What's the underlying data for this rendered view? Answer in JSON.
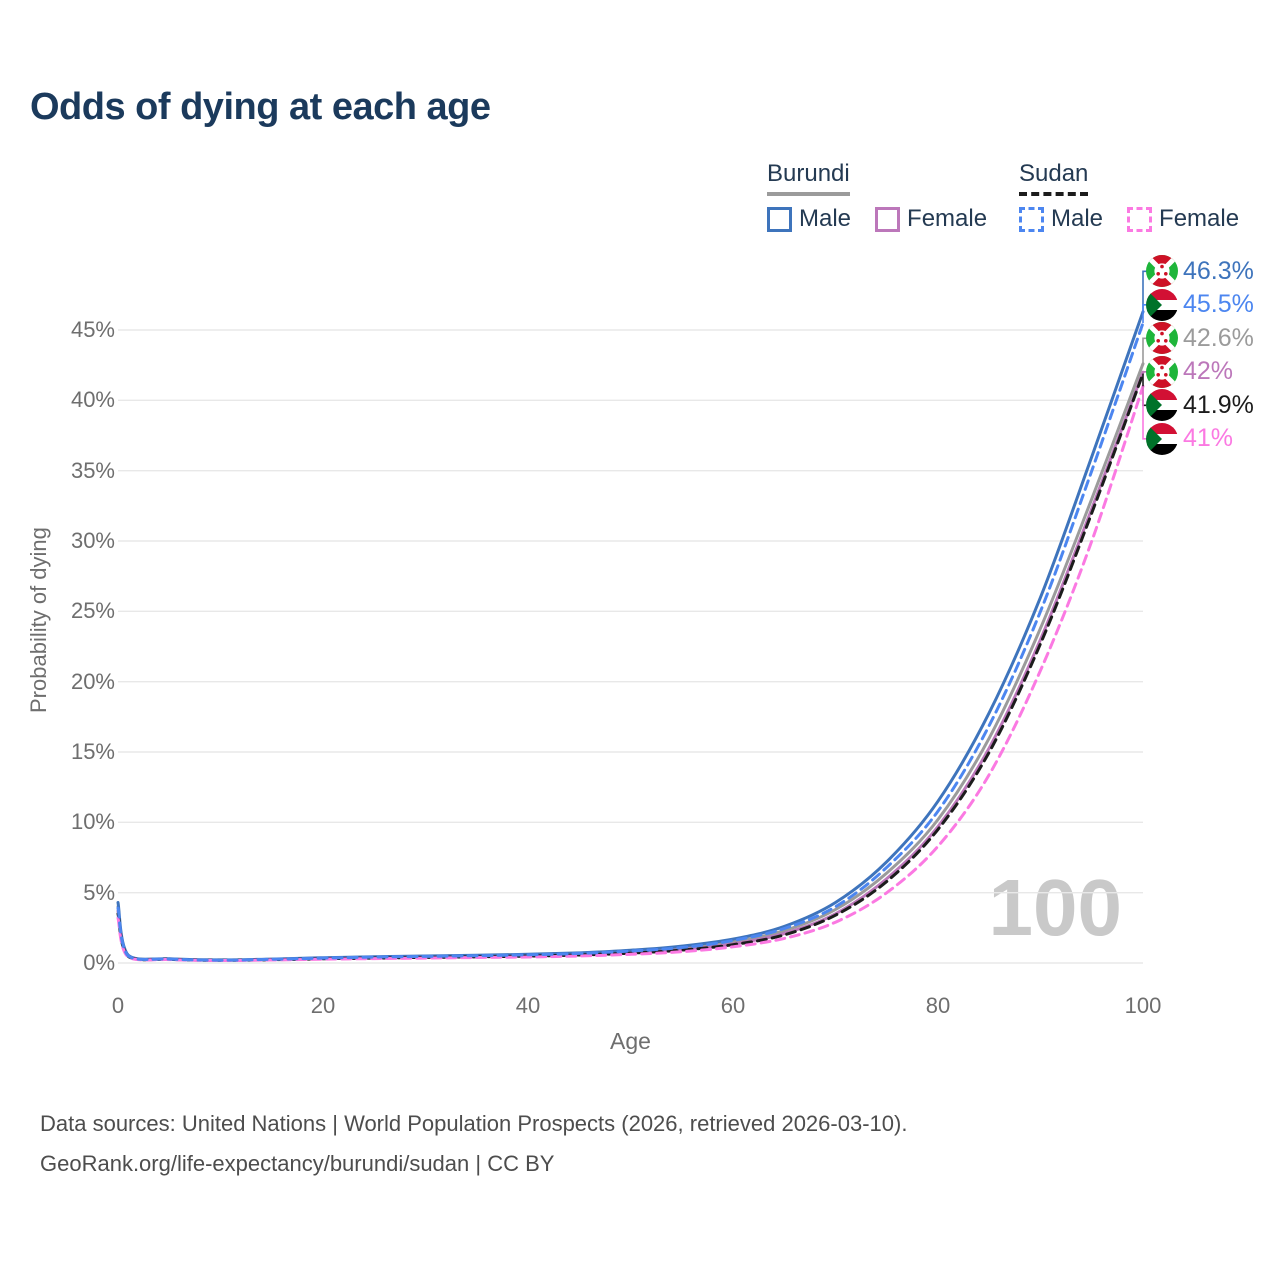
{
  "title": "Odds of dying at each age",
  "legend": {
    "groups": [
      {
        "country": "Burundi",
        "line_color": "#9b9b9b",
        "dashed": false,
        "items": [
          {
            "label": "Male",
            "color": "#3e74bc",
            "dashed": false
          },
          {
            "label": "Female",
            "color": "#bc77ba",
            "dashed": false
          }
        ]
      },
      {
        "country": "Sudan",
        "line_color": "#1c1c1c",
        "dashed": true,
        "items": [
          {
            "label": "Male",
            "color": "#4c86f0",
            "dashed": true
          },
          {
            "label": "Female",
            "color": "#fb79e2",
            "dashed": true
          }
        ]
      }
    ]
  },
  "colors": {
    "title": "#1b3a5c",
    "legend_text": "#243a52",
    "axis_text": "#6e6e6e",
    "grid": "#e8e8e8",
    "watermark": "#c9c9c9",
    "footer": "#4d4d4d"
  },
  "chart_data": {
    "type": "line",
    "title": "Odds of dying at each age",
    "xlabel": "Age",
    "ylabel": "Probability of dying",
    "xlim": [
      0,
      100
    ],
    "ylim": [
      0,
      48
    ],
    "xticks": [
      0,
      20,
      40,
      60,
      80,
      100
    ],
    "yticks": [
      0,
      5,
      10,
      15,
      20,
      25,
      30,
      35,
      40,
      45
    ],
    "ytick_suffix": "%",
    "grid": "horizontal",
    "legend_position": "top-right",
    "age_marker": "100",
    "ages": [
      0,
      1,
      5,
      10,
      15,
      20,
      25,
      30,
      35,
      40,
      45,
      50,
      55,
      60,
      65,
      70,
      75,
      80,
      85,
      90,
      95,
      100
    ],
    "series": [
      {
        "id": "burundi_male",
        "name": "Burundi Male",
        "flag": "burundi",
        "color": "#3e74bc",
        "dashed": false,
        "end_label": "46.3%",
        "values": [
          4.3,
          0.55,
          0.3,
          0.22,
          0.28,
          0.38,
          0.45,
          0.5,
          0.55,
          0.62,
          0.72,
          0.9,
          1.2,
          1.7,
          2.6,
          4.3,
          7.2,
          11.5,
          17.8,
          26.0,
          36.0,
          46.3
        ]
      },
      {
        "id": "sudan_male",
        "name": "Sudan Male",
        "flag": "sudan",
        "color": "#4c86f0",
        "dashed": true,
        "end_label": "45.5%",
        "values": [
          3.9,
          0.5,
          0.28,
          0.2,
          0.26,
          0.35,
          0.42,
          0.47,
          0.52,
          0.58,
          0.68,
          0.85,
          1.1,
          1.6,
          2.45,
          4.0,
          6.8,
          10.8,
          16.9,
          25.0,
          35.0,
          45.5
        ]
      },
      {
        "id": "burundi_both",
        "name": "Burundi",
        "flag": "burundi",
        "color": "#9b9b9b",
        "dashed": false,
        "end_label": "42.6%",
        "values": [
          4.0,
          0.52,
          0.29,
          0.21,
          0.26,
          0.35,
          0.41,
          0.46,
          0.5,
          0.56,
          0.65,
          0.8,
          1.05,
          1.5,
          2.3,
          3.8,
          6.4,
          10.2,
          16.0,
          23.8,
          33.0,
          42.6
        ]
      },
      {
        "id": "burundi_female",
        "name": "Burundi Female",
        "flag": "burundi",
        "color": "#bc77ba",
        "dashed": false,
        "end_label": "42%",
        "values": [
          3.7,
          0.48,
          0.27,
          0.2,
          0.24,
          0.31,
          0.36,
          0.41,
          0.45,
          0.5,
          0.58,
          0.72,
          0.95,
          1.35,
          2.1,
          3.5,
          6.0,
          9.7,
          15.3,
          23.0,
          32.3,
          42.0
        ]
      },
      {
        "id": "sudan_both",
        "name": "Sudan",
        "flag": "sudan",
        "color": "#1c1c1c",
        "dashed": true,
        "end_label": "41.9%",
        "values": [
          3.5,
          0.46,
          0.26,
          0.19,
          0.23,
          0.3,
          0.35,
          0.4,
          0.44,
          0.49,
          0.57,
          0.7,
          0.92,
          1.3,
          2.0,
          3.4,
          5.8,
          9.5,
          15.0,
          22.7,
          32.0,
          41.9
        ]
      },
      {
        "id": "sudan_female",
        "name": "Sudan Female",
        "flag": "sudan",
        "color": "#fb79e2",
        "dashed": true,
        "end_label": "41%",
        "values": [
          3.2,
          0.42,
          0.24,
          0.18,
          0.21,
          0.27,
          0.31,
          0.35,
          0.39,
          0.43,
          0.5,
          0.62,
          0.8,
          1.15,
          1.75,
          2.9,
          5.0,
          8.3,
          13.4,
          20.8,
          30.0,
          41.0
        ]
      }
    ]
  },
  "footer": {
    "line1": "Data sources: United Nations | World Population Prospects (2026, retrieved 2026-03-10).",
    "line2": "GeoRank.org/life-expectancy/burundi/sudan | CC BY"
  }
}
